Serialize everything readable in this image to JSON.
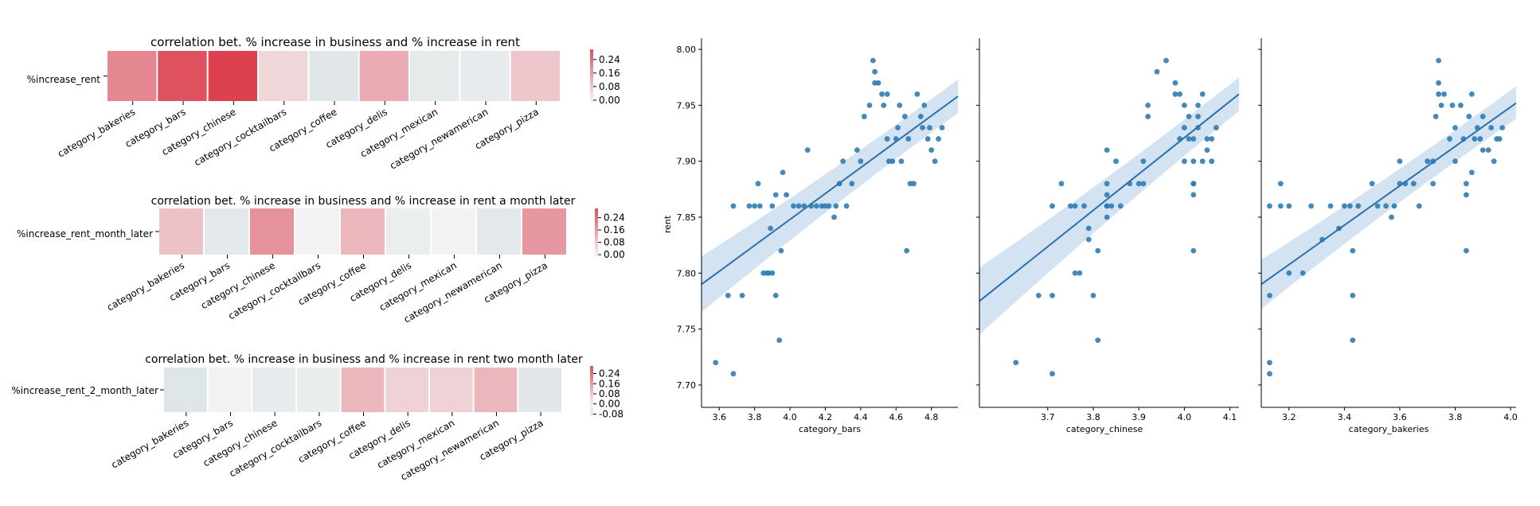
{
  "chart_data": [
    {
      "type": "heatmap",
      "title": "correlation bet. % increase in business and % increase in rent",
      "row_label": "%increase_rent",
      "categories": [
        "category_bakeries",
        "category_bars",
        "category_chinese",
        "category_cocktailbars",
        "category_coffee",
        "category_delis",
        "category_mexican",
        "category_newamerican",
        "category_pizza"
      ],
      "values": [
        0.2,
        0.3,
        0.33,
        0.05,
        -0.08,
        0.13,
        -0.06,
        -0.05,
        0.08
      ],
      "colorbar_ticks": [
        "0.24",
        "0.16",
        "0.08",
        "0.00"
      ],
      "colorbar_range": [
        -0.01,
        0.3
      ]
    },
    {
      "type": "heatmap",
      "title": "correlation bet. % increase in business and % increase in rent a month later",
      "row_label": "%increase_rent_month_later",
      "categories": [
        "category_bakeries",
        "category_bars",
        "category_chinese",
        "category_cocktailbars",
        "category_coffee",
        "category_delis",
        "category_mexican",
        "category_newamerican",
        "category_pizza"
      ],
      "values": [
        0.09,
        -0.07,
        0.18,
        0.0,
        0.11,
        -0.03,
        0.0,
        -0.07,
        0.17
      ],
      "colorbar_ticks": [
        "0.24",
        "0.16",
        "0.08",
        "0.00"
      ],
      "colorbar_range": [
        -0.01,
        0.3
      ]
    },
    {
      "type": "heatmap",
      "title": "correlation bet. % increase in business and % increase in rent two month later",
      "row_label": "%increase_rent_2_month_later",
      "categories": [
        "category_bakeries",
        "category_bars",
        "category_chinese",
        "category_cocktailbars",
        "category_coffee",
        "category_delis",
        "category_mexican",
        "category_newamerican",
        "category_pizza"
      ],
      "values": [
        -0.09,
        0.0,
        -0.05,
        -0.04,
        0.11,
        0.06,
        0.06,
        0.11,
        -0.08
      ],
      "colorbar_ticks": [
        "0.24",
        "0.16",
        "0.08",
        "0.00",
        "-0.08"
      ],
      "colorbar_range": [
        -0.09,
        0.3
      ]
    },
    {
      "type": "scatter",
      "xlabel": "category_bars",
      "ylabel": "rent",
      "xlim": [
        3.5,
        4.95
      ],
      "ylim": [
        7.68,
        8.01
      ],
      "xticks": [
        "3.6",
        "3.8",
        "4.0",
        "4.2",
        "4.4",
        "4.6",
        "4.8"
      ],
      "yticks": [
        "7.70",
        "7.75",
        "7.80",
        "7.85",
        "7.90",
        "7.95",
        "8.00"
      ],
      "regression": {
        "x": [
          3.5,
          4.95
        ],
        "y": [
          7.79,
          7.958
        ],
        "ci_low": [
          7.765,
          7.943
        ],
        "ci_high": [
          7.815,
          7.973
        ]
      },
      "points": [
        [
          3.58,
          7.72
        ],
        [
          3.65,
          7.78
        ],
        [
          3.68,
          7.71
        ],
        [
          3.68,
          7.86
        ],
        [
          3.73,
          7.78
        ],
        [
          3.77,
          7.86
        ],
        [
          3.8,
          7.86
        ],
        [
          3.82,
          7.88
        ],
        [
          3.83,
          7.86
        ],
        [
          3.85,
          7.8
        ],
        [
          3.87,
          7.8
        ],
        [
          3.88,
          7.8
        ],
        [
          3.89,
          7.84
        ],
        [
          3.9,
          7.86
        ],
        [
          3.9,
          7.8
        ],
        [
          3.92,
          7.87
        ],
        [
          3.92,
          7.78
        ],
        [
          3.94,
          7.74
        ],
        [
          3.95,
          7.82
        ],
        [
          3.96,
          7.89
        ],
        [
          3.98,
          7.87
        ],
        [
          4.02,
          7.86
        ],
        [
          4.05,
          7.86
        ],
        [
          4.08,
          7.86
        ],
        [
          4.1,
          7.91
        ],
        [
          4.12,
          7.86
        ],
        [
          4.15,
          7.86
        ],
        [
          4.18,
          7.86
        ],
        [
          4.2,
          7.86
        ],
        [
          4.22,
          7.86
        ],
        [
          4.25,
          7.85
        ],
        [
          4.26,
          7.86
        ],
        [
          4.28,
          7.88
        ],
        [
          4.3,
          7.9
        ],
        [
          4.32,
          7.86
        ],
        [
          4.35,
          7.88
        ],
        [
          4.38,
          7.91
        ],
        [
          4.4,
          7.9
        ],
        [
          4.42,
          7.94
        ],
        [
          4.45,
          7.95
        ],
        [
          4.47,
          7.99
        ],
        [
          4.48,
          7.98
        ],
        [
          4.5,
          7.97
        ],
        [
          4.52,
          7.96
        ],
        [
          4.53,
          7.95
        ],
        [
          4.55,
          7.92
        ],
        [
          4.56,
          7.9
        ],
        [
          4.58,
          7.9
        ],
        [
          4.6,
          7.92
        ],
        [
          4.62,
          7.95
        ],
        [
          4.63,
          7.9
        ],
        [
          4.65,
          7.94
        ],
        [
          4.66,
          7.82
        ],
        [
          4.67,
          7.92
        ],
        [
          4.68,
          7.88
        ],
        [
          4.7,
          7.88
        ],
        [
          4.72,
          7.96
        ],
        [
          4.74,
          7.94
        ],
        [
          4.76,
          7.95
        ],
        [
          4.78,
          7.92
        ],
        [
          4.79,
          7.93
        ],
        [
          4.8,
          7.91
        ],
        [
          4.82,
          7.9
        ],
        [
          4.84,
          7.92
        ],
        [
          4.86,
          7.93
        ],
        [
          4.75,
          7.93
        ],
        [
          4.55,
          7.96
        ],
        [
          4.48,
          7.97
        ],
        [
          4.61,
          7.93
        ]
      ]
    },
    {
      "type": "scatter",
      "xlabel": "category_chinese",
      "ylabel": "",
      "xlim": [
        3.55,
        4.12
      ],
      "ylim": [
        7.68,
        8.01
      ],
      "xticks": [
        "3.7",
        "3.8",
        "3.9",
        "4.0",
        "4.1"
      ],
      "yticks": [],
      "regression": {
        "x": [
          3.55,
          4.12
        ],
        "y": [
          7.775,
          7.96
        ],
        "ci_low": [
          7.745,
          7.945
        ],
        "ci_high": [
          7.805,
          7.975
        ]
      },
      "points": [
        [
          3.63,
          7.72
        ],
        [
          3.68,
          7.78
        ],
        [
          3.71,
          7.86
        ],
        [
          3.71,
          7.78
        ],
        [
          3.71,
          7.71
        ],
        [
          3.73,
          7.88
        ],
        [
          3.75,
          7.86
        ],
        [
          3.76,
          7.86
        ],
        [
          3.76,
          7.8
        ],
        [
          3.77,
          7.8
        ],
        [
          3.78,
          7.86
        ],
        [
          3.79,
          7.83
        ],
        [
          3.79,
          7.84
        ],
        [
          3.8,
          7.78
        ],
        [
          3.81,
          7.74
        ],
        [
          3.81,
          7.82
        ],
        [
          3.83,
          7.86
        ],
        [
          3.83,
          7.88
        ],
        [
          3.83,
          7.91
        ],
        [
          3.83,
          7.87
        ],
        [
          3.83,
          7.86
        ],
        [
          3.83,
          7.85
        ],
        [
          3.84,
          7.86
        ],
        [
          3.85,
          7.9
        ],
        [
          3.86,
          7.86
        ],
        [
          3.88,
          7.88
        ],
        [
          3.9,
          7.88
        ],
        [
          3.91,
          7.88
        ],
        [
          3.91,
          7.9
        ],
        [
          3.92,
          7.94
        ],
        [
          3.92,
          7.95
        ],
        [
          3.94,
          7.98
        ],
        [
          3.96,
          7.99
        ],
        [
          3.98,
          7.97
        ],
        [
          3.98,
          7.96
        ],
        [
          3.99,
          7.96
        ],
        [
          4.0,
          7.95
        ],
        [
          4.0,
          7.9
        ],
        [
          4.01,
          7.92
        ],
        [
          4.01,
          7.94
        ],
        [
          4.02,
          7.9
        ],
        [
          4.02,
          7.88
        ],
        [
          4.02,
          7.87
        ],
        [
          4.02,
          7.82
        ],
        [
          4.03,
          7.95
        ],
        [
          4.03,
          7.94
        ],
        [
          4.03,
          7.93
        ],
        [
          4.04,
          7.9
        ],
        [
          4.04,
          7.96
        ],
        [
          4.05,
          7.92
        ],
        [
          4.05,
          7.91
        ],
        [
          4.06,
          7.9
        ],
        [
          4.06,
          7.92
        ],
        [
          4.07,
          7.93
        ],
        [
          4.02,
          7.92
        ],
        [
          4.02,
          7.88
        ],
        [
          4.0,
          7.93
        ],
        [
          3.99,
          7.92
        ]
      ]
    },
    {
      "type": "scatter",
      "xlabel": "category_bakeries",
      "ylabel": "",
      "xlim": [
        3.1,
        4.02
      ],
      "ylim": [
        7.68,
        8.01
      ],
      "xticks": [
        "3.2",
        "3.4",
        "3.6",
        "3.8",
        "4.0"
      ],
      "yticks": [],
      "regression": {
        "x": [
          3.1,
          4.02
        ],
        "y": [
          7.79,
          7.952
        ],
        "ci_low": [
          7.768,
          7.938
        ],
        "ci_high": [
          7.812,
          7.967
        ]
      },
      "points": [
        [
          3.13,
          7.72
        ],
        [
          3.13,
          7.71
        ],
        [
          3.13,
          7.78
        ],
        [
          3.13,
          7.86
        ],
        [
          3.17,
          7.86
        ],
        [
          3.17,
          7.88
        ],
        [
          3.2,
          7.8
        ],
        [
          3.2,
          7.86
        ],
        [
          3.25,
          7.8
        ],
        [
          3.28,
          7.86
        ],
        [
          3.32,
          7.83
        ],
        [
          3.35,
          7.86
        ],
        [
          3.38,
          7.84
        ],
        [
          3.4,
          7.86
        ],
        [
          3.42,
          7.86
        ],
        [
          3.43,
          7.82
        ],
        [
          3.43,
          7.78
        ],
        [
          3.43,
          7.74
        ],
        [
          3.45,
          7.86
        ],
        [
          3.5,
          7.88
        ],
        [
          3.52,
          7.86
        ],
        [
          3.55,
          7.86
        ],
        [
          3.57,
          7.85
        ],
        [
          3.58,
          7.86
        ],
        [
          3.6,
          7.88
        ],
        [
          3.6,
          7.9
        ],
        [
          3.62,
          7.88
        ],
        [
          3.65,
          7.88
        ],
        [
          3.67,
          7.86
        ],
        [
          3.7,
          7.9
        ],
        [
          3.72,
          7.9
        ],
        [
          3.73,
          7.94
        ],
        [
          3.74,
          7.96
        ],
        [
          3.74,
          7.97
        ],
        [
          3.74,
          7.99
        ],
        [
          3.75,
          7.95
        ],
        [
          3.76,
          7.96
        ],
        [
          3.78,
          7.92
        ],
        [
          3.79,
          7.95
        ],
        [
          3.8,
          7.93
        ],
        [
          3.8,
          7.9
        ],
        [
          3.82,
          7.95
        ],
        [
          3.83,
          7.92
        ],
        [
          3.84,
          7.88
        ],
        [
          3.84,
          7.87
        ],
        [
          3.84,
          7.82
        ],
        [
          3.85,
          7.94
        ],
        [
          3.86,
          7.96
        ],
        [
          3.87,
          7.92
        ],
        [
          3.88,
          7.93
        ],
        [
          3.89,
          7.92
        ],
        [
          3.9,
          7.94
        ],
        [
          3.9,
          7.91
        ],
        [
          3.92,
          7.91
        ],
        [
          3.93,
          7.93
        ],
        [
          3.95,
          7.92
        ],
        [
          3.96,
          7.92
        ],
        [
          3.97,
          7.93
        ],
        [
          3.94,
          7.9
        ],
        [
          3.86,
          7.89
        ],
        [
          3.72,
          7.88
        ]
      ]
    }
  ]
}
